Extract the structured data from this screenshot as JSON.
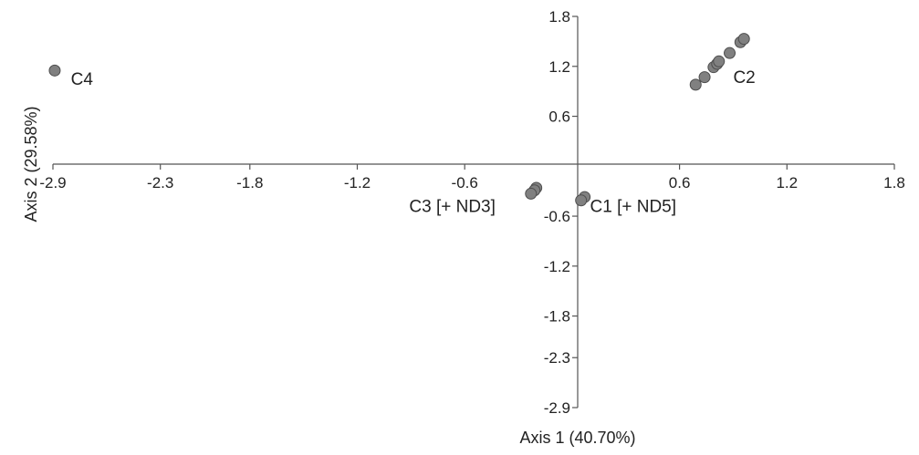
{
  "chart_data": {
    "type": "scatter",
    "title": "",
    "xlabel": "Axis 1 (40.70%)",
    "ylabel": "Axis 2 (29.58%)",
    "xlim": [
      -2.9,
      1.8
    ],
    "ylim": [
      -2.9,
      1.8
    ],
    "x_ticks": [
      "-2.9",
      "-2.3",
      "-1.8",
      "-1.2",
      "-0.6",
      "0.6",
      "1.2",
      "1.8"
    ],
    "y_ticks": [
      "1.8",
      "1.2",
      "0.6",
      "-0.6",
      "-1.2",
      "-1.8",
      "-2.3",
      "-2.9"
    ],
    "grid": false,
    "point_color": "#808080",
    "point_stroke": "#4d4d4d",
    "axis_color": "#555555",
    "points": [
      {
        "x": -2.89,
        "y": 1.15
      },
      {
        "x": 0.69,
        "y": 0.98
      },
      {
        "x": 0.74,
        "y": 1.07
      },
      {
        "x": 0.79,
        "y": 1.19
      },
      {
        "x": 0.81,
        "y": 1.23
      },
      {
        "x": 0.82,
        "y": 1.26
      },
      {
        "x": 0.88,
        "y": 1.36
      },
      {
        "x": 0.94,
        "y": 1.49
      },
      {
        "x": 0.96,
        "y": 1.53
      },
      {
        "x": -0.2,
        "y": -0.26
      },
      {
        "x": -0.21,
        "y": -0.29
      },
      {
        "x": -0.23,
        "y": -0.33
      },
      {
        "x": 0.07,
        "y": -0.37
      },
      {
        "x": 0.05,
        "y": -0.41
      }
    ],
    "annotations": [
      {
        "text": "C4",
        "x": -2.8,
        "y": 0.98
      },
      {
        "text": "C2",
        "x": 0.9,
        "y": 1.0
      },
      {
        "text": "C3 [+ ND3]",
        "x": -0.91,
        "y": -0.55
      },
      {
        "text": "C1 [+ ND5]",
        "x": 0.1,
        "y": -0.55
      }
    ]
  }
}
